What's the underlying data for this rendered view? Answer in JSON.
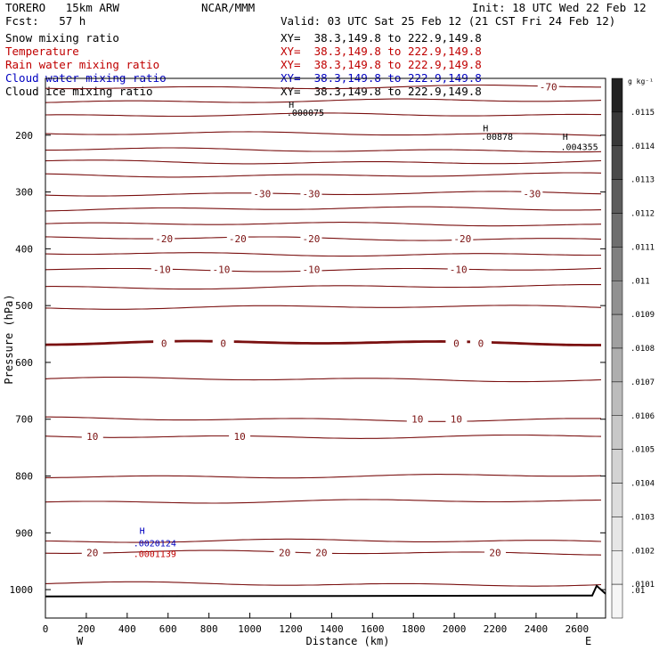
{
  "header": {
    "model": "TORERO   15km ARW",
    "center": "NCAR/MMM",
    "init": "Init: 18 UTC Wed 22 Feb 12",
    "fcst": "Fcst:   57 h",
    "valid": "Valid: 03 UTC Sat 25 Feb 12 (21 CST Fri 24 Feb 12)"
  },
  "fields": [
    {
      "name": "Snow mixing ratio",
      "xy": "XY=  38.3,149.8 to 222.9,149.8",
      "color": "#000000"
    },
    {
      "name": "Temperature",
      "xy": "XY=  38.3,149.8 to 222.9,149.8",
      "color": "#c00000"
    },
    {
      "name": "Rain water mixing ratio",
      "xy": "XY=  38.3,149.8 to 222.9,149.8",
      "color": "#c00000"
    },
    {
      "name": "Cloud water mixing ratio",
      "xy": "XY=  38.3,149.8 to 222.9,149.8",
      "color": "#0000c0"
    },
    {
      "name": "Cloud ice mixing ratio",
      "xy": "XY=  38.3,149.8 to 222.9,149.8",
      "color": "#000000"
    }
  ],
  "chart_data": {
    "type": "line",
    "xlabel": "Distance (km)",
    "ylabel": "Pressure (hPa)",
    "xlim": [
      0,
      2740
    ],
    "ylim": [
      1050,
      100
    ],
    "x_ticks": [
      0,
      200,
      400,
      600,
      800,
      1000,
      1200,
      1400,
      1600,
      1800,
      2000,
      2200,
      2400,
      2600
    ],
    "y_ticks": [
      200,
      300,
      400,
      500,
      600,
      700,
      800,
      900,
      1000
    ],
    "x_end_labels": {
      "left": "W",
      "right": "E"
    },
    "isotherm_color": "#7a1010",
    "isotherms": [
      {
        "p": 115,
        "label": "-70",
        "label_x": [
          2460
        ]
      },
      {
        "p": 140,
        "label": "",
        "label_x": []
      },
      {
        "p": 165,
        "label": "",
        "label_x": []
      },
      {
        "p": 198,
        "label": "",
        "label_x": []
      },
      {
        "p": 226,
        "label": "",
        "label_x": []
      },
      {
        "p": 247,
        "label": "",
        "label_x": []
      },
      {
        "p": 270,
        "label": "",
        "label_x": []
      },
      {
        "p": 303,
        "label": "-30",
        "label_x": [
          1060,
          1300,
          2380
        ]
      },
      {
        "p": 330,
        "label": "",
        "label_x": []
      },
      {
        "p": 357,
        "label": "",
        "label_x": []
      },
      {
        "p": 382,
        "label": "-20",
        "label_x": [
          580,
          940,
          1300,
          2040
        ]
      },
      {
        "p": 409,
        "label": "",
        "label_x": []
      },
      {
        "p": 436,
        "label": "-10",
        "label_x": [
          570,
          860,
          1300,
          2020
        ]
      },
      {
        "p": 467,
        "label": "",
        "label_x": []
      },
      {
        "p": 503,
        "label": "",
        "label_x": []
      },
      {
        "p": 566,
        "label": "0",
        "label_x": [
          580,
          870,
          2010,
          2130
        ],
        "thick": true
      },
      {
        "p": 630,
        "label": "",
        "label_x": []
      },
      {
        "p": 700,
        "label": "10",
        "label_x": [
          1820,
          2010
        ]
      },
      {
        "p": 730,
        "label": "10",
        "label_x": [
          230,
          950
        ]
      },
      {
        "p": 800,
        "label": "",
        "label_x": []
      },
      {
        "p": 845,
        "label": "",
        "label_x": []
      },
      {
        "p": 915,
        "label": "",
        "label_x": []
      },
      {
        "p": 935,
        "label": "20",
        "label_x": [
          230,
          1170,
          1350,
          2200
        ]
      },
      {
        "p": 990,
        "label": "",
        "label_x": []
      }
    ],
    "terrain_p": 1012,
    "annotations": [
      {
        "text": "H",
        "x": 2140,
        "p": 193,
        "color": "#000000"
      },
      {
        "text": ".00878",
        "x": 2130,
        "p": 208,
        "color": "#000000"
      },
      {
        "text": "H",
        "x": 2530,
        "p": 208,
        "color": "#000000"
      },
      {
        "text": ".004355",
        "x": 2520,
        "p": 226,
        "color": "#000000"
      },
      {
        "text": "H",
        "x": 460,
        "p": 902,
        "color": "#0000c0"
      },
      {
        "text": ".0020124",
        "x": 430,
        "p": 924,
        "color": "#0000c0"
      },
      {
        "text": ".0001139",
        "x": 430,
        "p": 943,
        "color": "#c00000"
      },
      {
        "text": "H",
        "x": 1190,
        "p": 152,
        "color": "#000000"
      },
      {
        "text": ".000075",
        "x": 1180,
        "p": 166,
        "color": "#000000"
      }
    ],
    "colorbar": {
      "unit": "g kg⁻¹",
      "labels": [
        ".0115",
        ".0114",
        ".0113",
        ".0112",
        ".0111",
        ".011",
        ".0109",
        ".0108",
        ".0107",
        ".0106",
        ".0105",
        ".0104",
        ".0103",
        ".0102",
        ".0101",
        ".01"
      ],
      "colors": [
        "#222222",
        "#383838",
        "#4a4a4a",
        "#5c5c5c",
        "#6e6e6e",
        "#808080",
        "#919191",
        "#a0a0a0",
        "#aeaeae",
        "#bcbcbc",
        "#c8c8c8",
        "#d3d3d3",
        "#dddddd",
        "#e6e6e6",
        "#efefef",
        "#f6f6f6"
      ]
    }
  }
}
